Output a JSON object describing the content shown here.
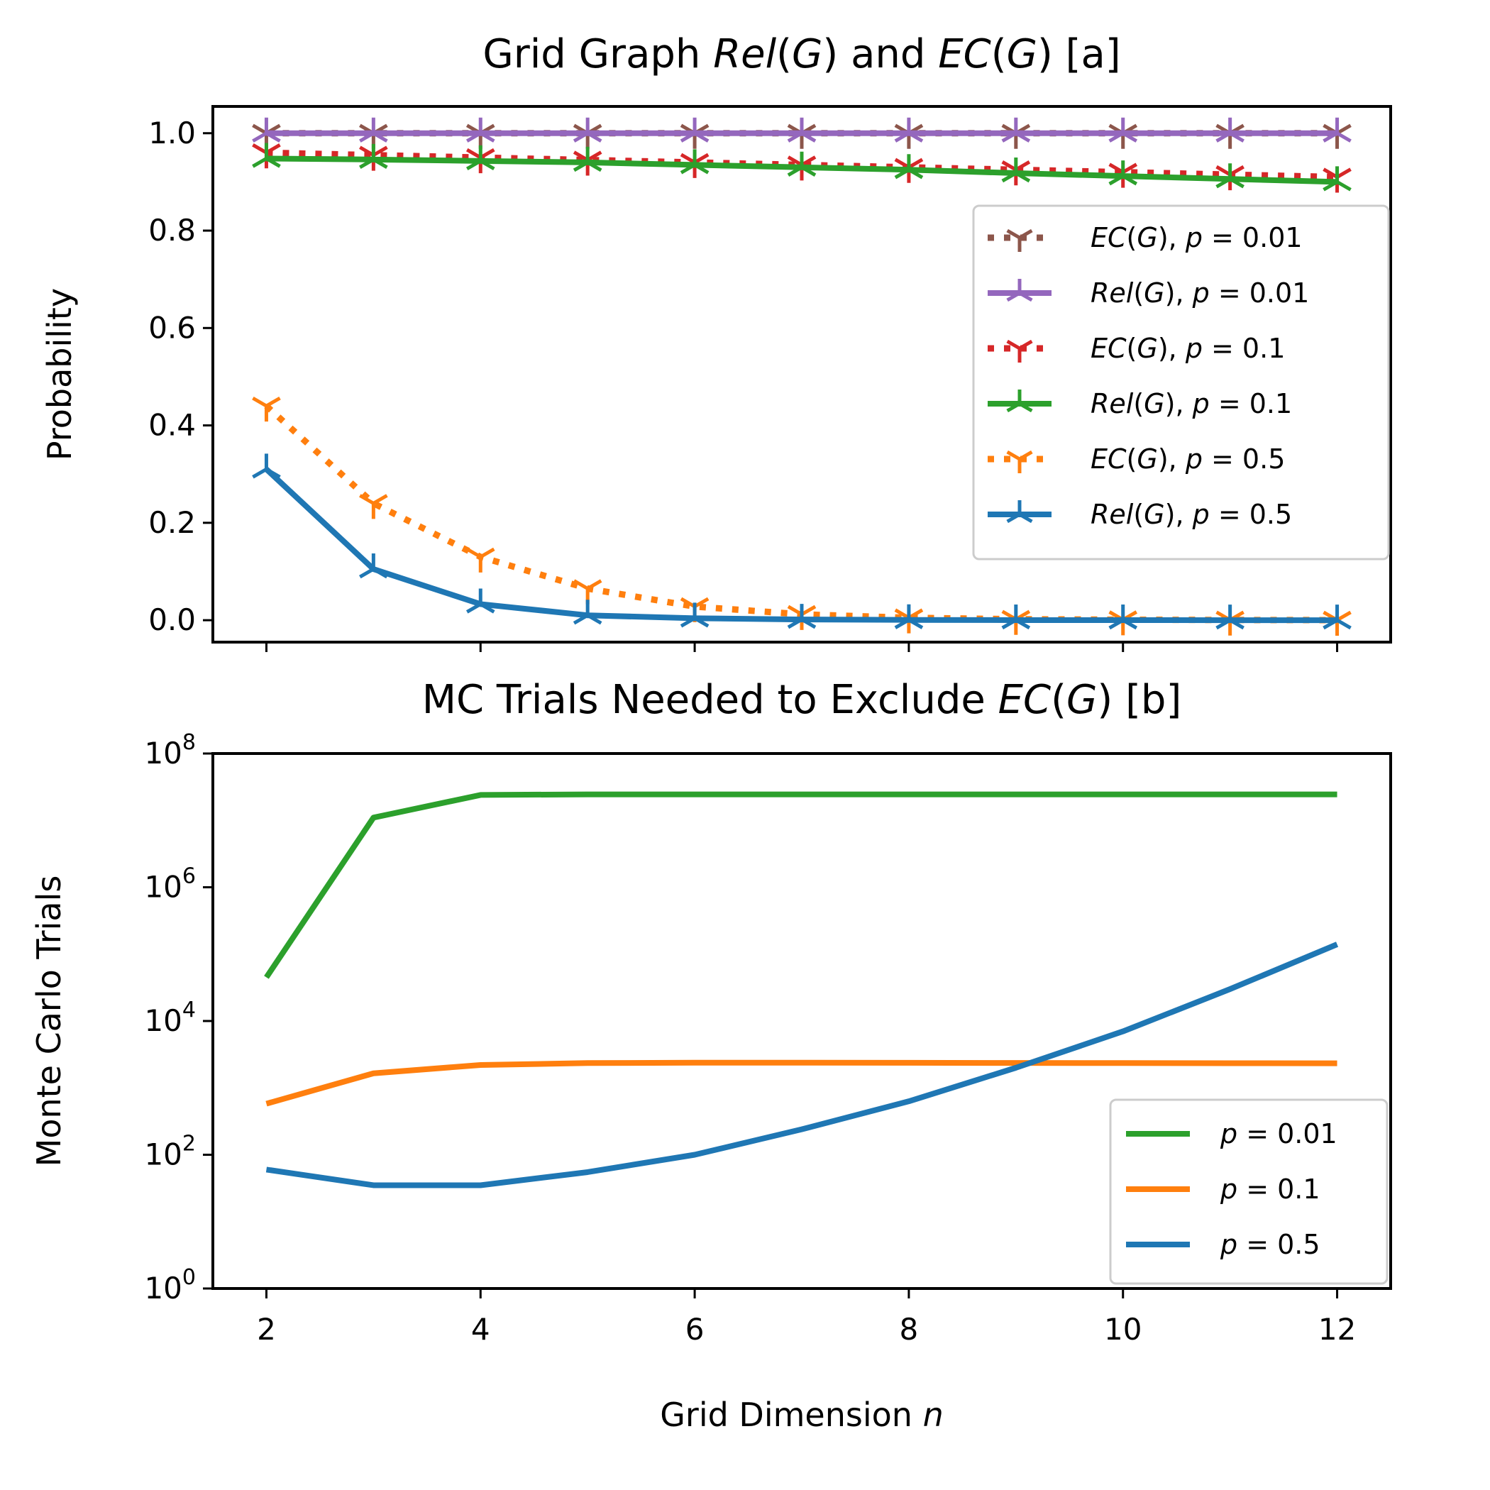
{
  "chart_data": [
    {
      "type": "line",
      "title": "Grid Graph Rel(G) and EC(G) [a]",
      "title_parts": [
        {
          "text": "Grid Graph ",
          "italic": false
        },
        {
          "text": "Rel",
          "italic": true
        },
        {
          "text": "(",
          "italic": false
        },
        {
          "text": "G",
          "italic": true
        },
        {
          "text": ") and ",
          "italic": false
        },
        {
          "text": "EC",
          "italic": true
        },
        {
          "text": "(",
          "italic": false
        },
        {
          "text": "G",
          "italic": true
        },
        {
          "text": ") [a]",
          "italic": false
        }
      ],
      "xlabel": "",
      "ylabel": "Probability",
      "x": [
        2,
        3,
        4,
        5,
        6,
        7,
        8,
        9,
        10,
        11,
        12
      ],
      "xlim": [
        1.5,
        12.5
      ],
      "ylim": [
        -0.045,
        1.055
      ],
      "yscale": "linear",
      "yticks": [
        0.0,
        0.2,
        0.4,
        0.6,
        0.8,
        1.0
      ],
      "ytick_labels": [
        "0.0",
        "0.2",
        "0.4",
        "0.6",
        "0.8",
        "1.0"
      ],
      "grid": false,
      "legend_position": "center-right",
      "series": [
        {
          "name": "EC(G), p = 0.01",
          "name_parts": [
            {
              "text": "EC",
              "italic": true
            },
            {
              "text": "(",
              "italic": false
            },
            {
              "text": "G",
              "italic": true
            },
            {
              "text": "), ",
              "italic": false
            },
            {
              "text": "p",
              "italic": true
            },
            {
              "text": " = 0.01",
              "italic": false
            }
          ],
          "color": "#8c564b",
          "dash": "dotted",
          "marker": "tri_down",
          "values": [
            1.0,
            1.0,
            1.0,
            1.0,
            1.0,
            1.0,
            1.0,
            1.0,
            1.0,
            1.0,
            1.0
          ]
        },
        {
          "name": "Rel(G), p = 0.01",
          "name_parts": [
            {
              "text": "Rel",
              "italic": true
            },
            {
              "text": "(",
              "italic": false
            },
            {
              "text": "G",
              "italic": true
            },
            {
              "text": "), ",
              "italic": false
            },
            {
              "text": "p",
              "italic": true
            },
            {
              "text": " = 0.01",
              "italic": false
            }
          ],
          "color": "#9467bd",
          "dash": "solid",
          "marker": "tri_up",
          "values": [
            1.0,
            1.0,
            1.0,
            1.0,
            1.0,
            1.0,
            1.0,
            1.0,
            1.0,
            1.0,
            1.0
          ]
        },
        {
          "name": "EC(G), p = 0.1",
          "name_parts": [
            {
              "text": "EC",
              "italic": true
            },
            {
              "text": "(",
              "italic": false
            },
            {
              "text": "G",
              "italic": true
            },
            {
              "text": "), ",
              "italic": false
            },
            {
              "text": "p",
              "italic": true
            },
            {
              "text": " = 0.1",
              "italic": false
            }
          ],
          "color": "#d62728",
          "dash": "dotted",
          "marker": "tri_down",
          "values": [
            0.96,
            0.955,
            0.95,
            0.945,
            0.94,
            0.935,
            0.93,
            0.925,
            0.92,
            0.915,
            0.91
          ]
        },
        {
          "name": "Rel(G), p = 0.1",
          "name_parts": [
            {
              "text": "Rel",
              "italic": true
            },
            {
              "text": "(",
              "italic": false
            },
            {
              "text": "G",
              "italic": true
            },
            {
              "text": "), ",
              "italic": false
            },
            {
              "text": "p",
              "italic": true
            },
            {
              "text": " = 0.1",
              "italic": false
            }
          ],
          "color": "#2ca02c",
          "dash": "solid",
          "marker": "tri_up",
          "values": [
            0.948,
            0.946,
            0.943,
            0.94,
            0.935,
            0.93,
            0.925,
            0.918,
            0.912,
            0.906,
            0.9
          ]
        },
        {
          "name": "EC(G), p = 0.5",
          "name_parts": [
            {
              "text": "EC",
              "italic": true
            },
            {
              "text": "(",
              "italic": false
            },
            {
              "text": "G",
              "italic": true
            },
            {
              "text": "), ",
              "italic": false
            },
            {
              "text": "p",
              "italic": true
            },
            {
              "text": " = 0.5",
              "italic": false
            }
          ],
          "color": "#ff7f0e",
          "dash": "dotted",
          "marker": "tri_down",
          "values": [
            0.44,
            0.24,
            0.13,
            0.065,
            0.028,
            0.012,
            0.005,
            0.002,
            0.001,
            0.0005,
            0.0002
          ]
        },
        {
          "name": "Rel(G), p = 0.5",
          "name_parts": [
            {
              "text": "Rel",
              "italic": true
            },
            {
              "text": "(",
              "italic": false
            },
            {
              "text": "G",
              "italic": true
            },
            {
              "text": "), ",
              "italic": false
            },
            {
              "text": "p",
              "italic": true
            },
            {
              "text": " = 0.5",
              "italic": false
            }
          ],
          "color": "#1f77b4",
          "dash": "solid",
          "marker": "tri_up",
          "values": [
            0.31,
            0.105,
            0.033,
            0.01,
            0.004,
            0.0015,
            0.0006,
            0.0002,
            0.0001,
            5e-05,
            2e-05
          ]
        }
      ]
    },
    {
      "type": "line",
      "title": "MC Trials Needed to Exclude EC(G) [b]",
      "title_parts": [
        {
          "text": "MC Trials Needed to Exclude ",
          "italic": false
        },
        {
          "text": "EC",
          "italic": true
        },
        {
          "text": "(",
          "italic": false
        },
        {
          "text": "G",
          "italic": true
        },
        {
          "text": ") [b]",
          "italic": false
        }
      ],
      "xlabel": "Grid Dimension n",
      "xlabel_parts": [
        {
          "text": "Grid Dimension ",
          "italic": false
        },
        {
          "text": "n",
          "italic": true
        }
      ],
      "ylabel": "Monte Carlo Trials",
      "x": [
        2,
        3,
        4,
        5,
        6,
        7,
        8,
        9,
        10,
        11,
        12
      ],
      "xlim": [
        1.5,
        12.5
      ],
      "xticks": [
        2,
        4,
        6,
        8,
        10,
        12
      ],
      "xtick_labels": [
        "2",
        "4",
        "6",
        "8",
        "10",
        "12"
      ],
      "ylim": [
        1,
        100000000
      ],
      "yscale": "log",
      "yticks": [
        1,
        100,
        10000,
        1000000,
        100000000
      ],
      "ytick_labels": [
        {
          "base": "10",
          "exp": "0"
        },
        {
          "base": "10",
          "exp": "2"
        },
        {
          "base": "10",
          "exp": "4"
        },
        {
          "base": "10",
          "exp": "6"
        },
        {
          "base": "10",
          "exp": "8"
        }
      ],
      "grid": false,
      "legend_position": "lower-right",
      "series": [
        {
          "name": "p = 0.01",
          "name_parts": [
            {
              "text": "p",
              "italic": true
            },
            {
              "text": " = 0.01",
              "italic": false
            }
          ],
          "color": "#2ca02c",
          "values": [
            45000,
            11000000,
            24000000,
            24500000,
            24500000,
            24500000,
            24500000,
            24500000,
            24500000,
            24500000,
            24500000
          ]
        },
        {
          "name": "p = 0.1",
          "name_parts": [
            {
              "text": "p",
              "italic": true
            },
            {
              "text": " = 0.1",
              "italic": false
            }
          ],
          "color": "#ff7f0e",
          "values": [
            580,
            1650,
            2200,
            2350,
            2380,
            2380,
            2370,
            2360,
            2350,
            2340,
            2330
          ]
        },
        {
          "name": "p = 0.5",
          "name_parts": [
            {
              "text": "p",
              "italic": true
            },
            {
              "text": " = 0.5",
              "italic": false
            }
          ],
          "color": "#1f77b4",
          "values": [
            60,
            35,
            35,
            55,
            100,
            240,
            630,
            2000,
            7000,
            30000,
            140000
          ]
        }
      ]
    }
  ]
}
